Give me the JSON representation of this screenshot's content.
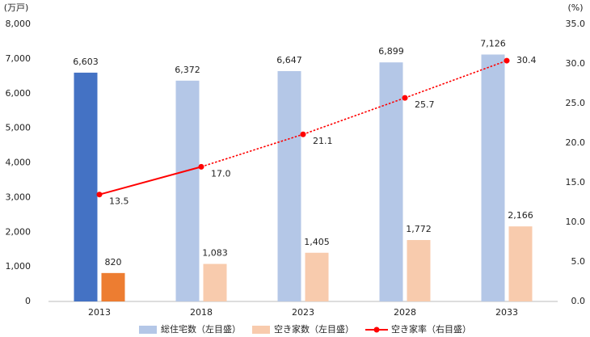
{
  "chart_data": {
    "type": "bar_line",
    "y_unit": "(万戸)",
    "y2_unit": "(%)",
    "categories": [
      "2013",
      "2018",
      "2023",
      "2028",
      "2033"
    ],
    "series": [
      {
        "name": "総住宅数（左目盛）",
        "type": "bar",
        "color": "#b4c7e7",
        "colors": [
          "#4472c4",
          "#b4c7e7",
          "#b4c7e7",
          "#b4c7e7",
          "#b4c7e7"
        ],
        "values": [
          6603,
          6372,
          6647,
          6899,
          7126
        ],
        "value_labels": [
          "6,603",
          "6,372",
          "6,647",
          "6,899",
          "7,126"
        ]
      },
      {
        "name": "空き家数（左目盛）",
        "type": "bar",
        "color": "#f8cbad",
        "colors": [
          "#ed7d31",
          "#f8cbad",
          "#f8cbad",
          "#f8cbad",
          "#f8cbad"
        ],
        "values": [
          820,
          1083,
          1405,
          1772,
          2166
        ],
        "value_labels": [
          "820",
          "1,083",
          "1,405",
          "1,772",
          "2,166"
        ]
      },
      {
        "name": "空き家率（右目盛）",
        "type": "line",
        "axis": "y2",
        "color": "#ff0000",
        "line_style": [
          "solid",
          "dotted",
          "dotted",
          "dotted"
        ],
        "values": [
          13.5,
          17.0,
          21.1,
          25.7,
          30.4
        ],
        "value_labels": [
          "13.5",
          "17.0",
          "21.1",
          "25.7",
          "30.4"
        ]
      }
    ],
    "ylim": [
      0,
      8000
    ],
    "yticks": [
      0,
      {
        "value": 1000,
        "label": "1,000"
      },
      {
        "value": 2000,
        "label": "2,000"
      },
      {
        "value": 3000,
        "label": "3,000"
      },
      {
        "value": 4000,
        "label": "4,000"
      },
      {
        "value": 5000,
        "label": "5,000"
      },
      {
        "value": 6000,
        "label": "6,000"
      },
      {
        "value": 7000,
        "label": "7,000"
      },
      {
        "value": 8000,
        "label": "8,000"
      }
    ],
    "y2lim": [
      0,
      35
    ],
    "y2ticks": [
      {
        "value": 0,
        "label": "0.0"
      },
      {
        "value": 5,
        "label": "5.0"
      },
      {
        "value": 10,
        "label": "10.0"
      },
      {
        "value": 15,
        "label": "15.0"
      },
      {
        "value": 20,
        "label": "20.0"
      },
      {
        "value": 25,
        "label": "25.0"
      },
      {
        "value": 30,
        "label": "30.0"
      },
      {
        "value": 35,
        "label": "35.0"
      }
    ],
    "grid": false,
    "legend": "bottom"
  }
}
